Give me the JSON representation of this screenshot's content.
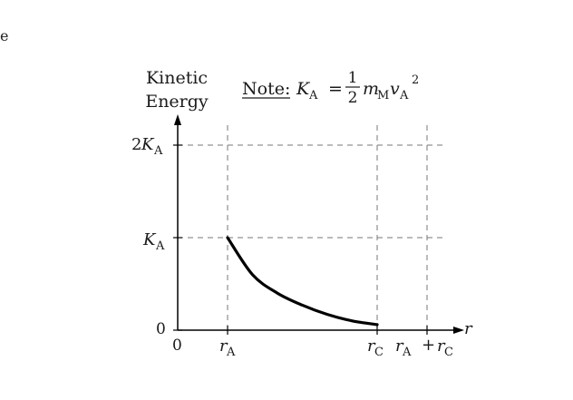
{
  "stray_char": "e",
  "chart_data": {
    "type": "line",
    "ylabel_lines": [
      "Kinetic",
      "Energy"
    ],
    "xlabel": "r",
    "note": {
      "label": "Note:",
      "lhs_symbol": "K",
      "lhs_subscript": "A",
      "equals": "=",
      "fraction_numerator": "1",
      "fraction_denominator": "2",
      "mass_symbol": "m",
      "mass_subscript": "M",
      "velocity_symbol": "v",
      "velocity_subscript": "A",
      "exponent": "2"
    },
    "y_ticks": [
      {
        "coef": "2",
        "symbol": "K",
        "sub": "A",
        "value": 2
      },
      {
        "coef": "",
        "symbol": "K",
        "sub": "A",
        "value": 1
      },
      {
        "coef": "",
        "symbol": "0",
        "sub": "",
        "value": 0
      }
    ],
    "x_ticks": {
      "origin": "0",
      "rA": {
        "symbol": "r",
        "sub": "A",
        "value": 1
      },
      "rC": {
        "symbol": "r",
        "sub": "C",
        "value": 4
      },
      "sum": {
        "symbol1": "r",
        "sub1": "A",
        "plus": "+",
        "symbol2": "r",
        "sub2": "C",
        "value": 5
      }
    },
    "xlim": [
      0,
      6
    ],
    "ylim": [
      0,
      2.3
    ],
    "grid": "dashed",
    "series": [
      {
        "x": [
          1,
          1.5,
          2,
          2.5,
          3,
          3.5,
          4
        ],
        "y": [
          1.0,
          0.6,
          0.4,
          0.27,
          0.17,
          0.1,
          0.06
        ]
      }
    ],
    "colors": {
      "line": "#000000",
      "grid": "#777777",
      "text": "#1a1a1a"
    }
  }
}
